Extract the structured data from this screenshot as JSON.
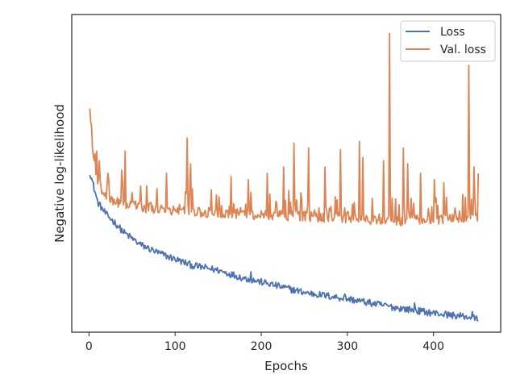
{
  "chart_data": {
    "type": "line",
    "title": "",
    "xlabel": "Epochs",
    "ylabel": "Negative log-likelihood",
    "xlim": [
      -20,
      478
    ],
    "ylim": [
      0,
      100
    ],
    "x_ticks": [
      0,
      100,
      200,
      300,
      400
    ],
    "y_ticks_visible": false,
    "grid": false,
    "legend_position": "top-right",
    "x_max_epoch": 452,
    "series": [
      {
        "name": "Loss",
        "color": "#4c72b0",
        "anchors": [
          [
            1,
            50.5
          ],
          [
            10,
            41
          ],
          [
            20,
            37
          ],
          [
            30,
            34.5
          ],
          [
            40,
            31.5
          ],
          [
            60,
            27.5
          ],
          [
            80,
            25
          ],
          [
            100,
            23
          ],
          [
            120,
            21
          ],
          [
            150,
            19.5
          ],
          [
            180,
            17
          ],
          [
            200,
            15.8
          ],
          [
            250,
            12.5
          ],
          [
            300,
            10.5
          ],
          [
            350,
            8
          ],
          [
            400,
            6
          ],
          [
            440,
            4.8
          ],
          [
            452,
            4
          ]
        ],
        "noise": 1.1,
        "spikes": [
          [
            378,
            9.2
          ],
          [
            188,
            19
          ],
          [
            297,
            12
          ],
          [
            343,
            9
          ],
          [
            445,
            6.5
          ]
        ]
      },
      {
        "name": "Val. loss",
        "color": "#dd8452",
        "anchors": [
          [
            1,
            71
          ],
          [
            3,
            61
          ],
          [
            6,
            53
          ],
          [
            10,
            47
          ],
          [
            20,
            42
          ],
          [
            40,
            40.5
          ],
          [
            80,
            38.5
          ],
          [
            150,
            37.5
          ],
          [
            250,
            36.5
          ],
          [
            350,
            35
          ],
          [
            452,
            36
          ]
        ],
        "noise": 1.6,
        "spikes": [
          [
            9,
            57
          ],
          [
            12,
            54
          ],
          [
            22,
            50
          ],
          [
            38,
            51
          ],
          [
            42,
            57
          ],
          [
            60,
            46
          ],
          [
            90,
            50
          ],
          [
            114,
            61
          ],
          [
            118,
            53
          ],
          [
            165,
            49
          ],
          [
            185,
            48
          ],
          [
            207,
            50
          ],
          [
            226,
            52
          ],
          [
            238,
            59.5
          ],
          [
            255,
            58
          ],
          [
            274,
            52
          ],
          [
            292,
            57.5
          ],
          [
            314,
            60
          ],
          [
            318,
            55
          ],
          [
            342,
            54
          ],
          [
            349,
            94
          ],
          [
            365,
            58
          ],
          [
            370,
            53
          ],
          [
            385,
            50
          ],
          [
            401,
            48
          ],
          [
            412,
            47
          ],
          [
            441,
            84
          ],
          [
            447,
            52
          ],
          [
            452,
            50
          ]
        ]
      }
    ]
  }
}
